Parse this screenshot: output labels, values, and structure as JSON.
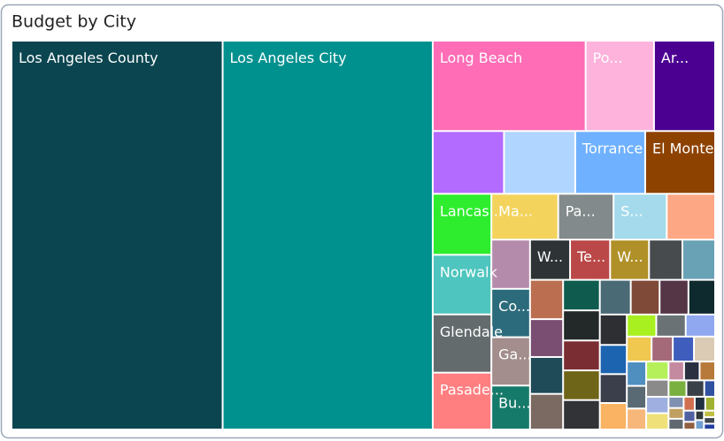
{
  "chart_data": {
    "type": "treemap",
    "title": "Budget by City",
    "categories": [
      "Los Angeles County",
      "Los Angeles City",
      "Long Beach",
      "Po...",
      "Ar...",
      null,
      null,
      "Torrance",
      "El Monte",
      "Lancas...",
      "Norwalk",
      "Glendale",
      "Pasade...",
      "Ma...",
      "Pa...",
      "S...",
      null,
      null,
      "Co...",
      "Ga...",
      "Bu...",
      "W...",
      "Te...",
      "W...",
      null,
      null,
      null,
      null,
      null,
      null,
      null,
      null,
      null,
      null,
      null,
      null,
      null,
      null,
      null,
      null,
      null,
      null,
      null,
      null,
      null,
      null,
      null,
      null,
      null,
      null,
      null,
      null,
      null,
      null,
      null,
      null,
      null,
      null,
      null,
      null,
      null,
      null,
      null,
      null,
      null,
      null,
      null,
      null,
      null,
      null,
      null,
      null,
      null,
      null,
      null,
      null
    ],
    "values": [
      101000,
      100500,
      17000,
      7600,
      6800,
      5500,
      5500,
      5400,
      5400,
      4400,
      4300,
      4200,
      4100,
      3770,
      3120,
      3000,
      2730,
      2340,
      2300,
      2300,
      2090,
      1980,
      1980,
      1925,
      1650,
      1620,
      1600,
      1540,
      1500,
      1450,
      1380,
      1360,
      1350,
      1340,
      1330,
      1320,
      1230,
      1230,
      1140,
      1010,
      970,
      960,
      880,
      800,
      800,
      800,
      760,
      650,
      650,
      650,
      580,
      540,
      500,
      500,
      470,
      450,
      450,
      360,
      360,
      360,
      360,
      360,
      220,
      210,
      200,
      200,
      190,
      180,
      170,
      160,
      110,
      100,
      100,
      90,
      90,
      80
    ],
    "colors": [
      "#0b4650",
      "#00918f",
      "#fe6db6",
      "#feb3dc",
      "#4b0092",
      "#b36bff",
      "#b0d6ff",
      "#6fb1ff",
      "#8d4200",
      "#2eed2e",
      "#4ec5be",
      "#636b6d",
      "#ff7e80",
      "#f3d35c",
      "#828a8b",
      "#a4daec",
      "#fda785",
      "#b58bab",
      "#2c6b7b",
      "#a38d8d",
      "#167a6a",
      "#2e3436",
      "#bb4848",
      "#b09028",
      "#474b4e",
      "#6aa2b5",
      "#bb6f50",
      "#7a4e72",
      "#1f4a58",
      "#7a6a62",
      "#0f5c4e",
      "#232829",
      "#7a2d33",
      "#6f6519",
      "#323336",
      "#4a6a75",
      "#7f4a38",
      "#543646",
      "#0f2a2f",
      "#2d2f33",
      "#1d64b0",
      "#3b3f4c",
      "#f9b363",
      "#a8f020",
      "#6a7275",
      "#8fa8f0",
      "#f0c850",
      "#a46a7a",
      "#3e5dbc",
      "#dbcbb5",
      "#4f8fc0",
      "#5a6a74",
      "#f7b77a",
      "#b5f05a",
      "#8a8a8a",
      "#9fb0e0",
      "#f0e07a",
      "#c48aa0",
      "#2b3040",
      "#b87a3a",
      "#7ab040",
      "#3a4048",
      "#3050a0",
      "#8090b0",
      "#c0a060",
      "#606870",
      "#d07050",
      "#203040",
      "#a0b030",
      "#5060a0",
      "#906040",
      "#303838",
      "#70a0d0",
      "#c0c040",
      "#404850",
      "#2040a0"
    ]
  }
}
